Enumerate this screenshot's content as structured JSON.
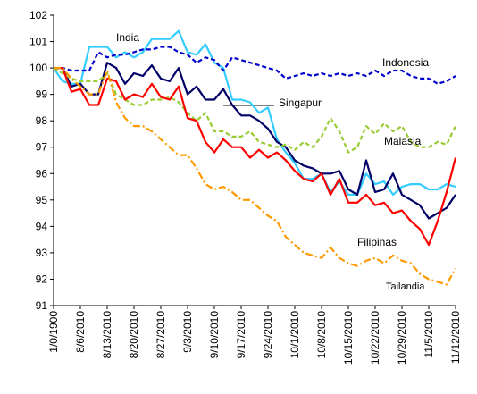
{
  "chart_data": {
    "type": "line",
    "categories": [
      "1/0/1900",
      null,
      null,
      "8/6/2010",
      null,
      null,
      "8/13/2010",
      null,
      null,
      "8/20/2010",
      null,
      null,
      "8/27/2010",
      null,
      null,
      "9/3/2010",
      null,
      null,
      "9/10/2010",
      null,
      null,
      "9/17/2010",
      null,
      null,
      "9/24/2010",
      null,
      null,
      "10/1/2010",
      null,
      null,
      "10/8/2010",
      null,
      null,
      "10/15/2010",
      null,
      null,
      "10/22/2010",
      null,
      null,
      "10/29/2010",
      null,
      null,
      "11/5/2010",
      null,
      null,
      "11/12/2010"
    ],
    "ylim": [
      91,
      102
    ],
    "yticks": [
      91,
      92,
      93,
      94,
      95,
      96,
      97,
      98,
      99,
      100,
      101,
      102
    ],
    "series": [
      {
        "name": "India",
        "color": "#33ccff",
        "style": "solid",
        "values": [
          100,
          99.5,
          99.4,
          99.4,
          100.8,
          100.8,
          100.8,
          100.4,
          100.6,
          100.4,
          100.6,
          101.1,
          101.1,
          101.1,
          101.4,
          100.6,
          100.5,
          100.9,
          100.2,
          100.0,
          98.8,
          98.8,
          98.7,
          98.3,
          98.5,
          97.3,
          96.8,
          96.4,
          95.8,
          95.8,
          96.0,
          95.3,
          95.7,
          95.2,
          95.2,
          96.0,
          95.6,
          95.7,
          95.2,
          95.5,
          95.6,
          95.6,
          95.4,
          95.4,
          95.6,
          95.5
        ]
      },
      {
        "name": "Indonesia",
        "color": "#0000cc",
        "style": "dashed",
        "values": [
          100,
          100,
          99.9,
          99.9,
          99.9,
          100.6,
          100.4,
          100.5,
          100.5,
          100.6,
          100.7,
          100.7,
          100.8,
          100.8,
          100.6,
          100.5,
          100.2,
          100.4,
          100.3,
          99.9,
          100.4,
          100.3,
          100.2,
          100.1,
          100.0,
          99.9,
          99.6,
          99.7,
          99.8,
          99.7,
          99.8,
          99.7,
          99.8,
          99.7,
          99.8,
          99.7,
          99.9,
          99.7,
          99.9,
          99.9,
          99.7,
          99.6,
          99.6,
          99.4,
          99.5,
          99.7
        ]
      },
      {
        "name": "Singapur",
        "color": "#000066",
        "style": "solid",
        "values": [
          100,
          100,
          99.3,
          99.4,
          99.0,
          99.0,
          100.2,
          100.0,
          99.4,
          99.8,
          99.7,
          100.1,
          99.6,
          99.5,
          100.0,
          99.0,
          99.3,
          98.8,
          98.8,
          99.2,
          98.6,
          98.2,
          98.2,
          98.0,
          97.7,
          97.2,
          97.0,
          96.5,
          96.3,
          96.2,
          96.0,
          96.0,
          96.1,
          95.4,
          95.2,
          96.5,
          95.3,
          95.4,
          96.0,
          95.2,
          95.0,
          94.8,
          94.3,
          94.5,
          94.7,
          95.2
        ]
      },
      {
        "name": "Malasia",
        "color": "#99cc33",
        "style": "dashed",
        "values": [
          100,
          99.8,
          99.6,
          99.5,
          99.5,
          99.5,
          99.8,
          99.0,
          98.8,
          98.6,
          98.6,
          98.8,
          98.8,
          98.9,
          98.7,
          98.3,
          98.0,
          98.3,
          97.6,
          97.6,
          97.4,
          97.4,
          97.6,
          97.2,
          97.1,
          97.0,
          97.1,
          96.9,
          97.2,
          97.0,
          97.4,
          98.1,
          97.6,
          96.8,
          97.0,
          97.8,
          97.5,
          97.9,
          97.6,
          97.8,
          97.2,
          97.0,
          97.0,
          97.2,
          97.1,
          97.8
        ]
      },
      {
        "name": "Filipinas",
        "color": "#ff0000",
        "style": "solid",
        "values": [
          100,
          100,
          99.1,
          99.2,
          98.6,
          98.6,
          99.6,
          99.5,
          98.8,
          99.0,
          98.9,
          99.4,
          98.9,
          98.8,
          99.3,
          98.1,
          98.0,
          97.2,
          96.8,
          97.3,
          97.0,
          97.0,
          96.6,
          96.9,
          96.6,
          96.8,
          96.5,
          96.1,
          95.8,
          95.7,
          96.0,
          95.2,
          95.8,
          94.9,
          94.9,
          95.2,
          94.8,
          94.9,
          94.5,
          94.6,
          94.2,
          93.9,
          93.3,
          94.2,
          95.3,
          96.6
        ]
      },
      {
        "name": "Tailandia",
        "color": "#ff9900",
        "style": "dashdot",
        "values": [
          100,
          100,
          99.6,
          99.3,
          99.0,
          99.0,
          99.9,
          98.7,
          98.1,
          97.8,
          97.8,
          97.6,
          97.3,
          97.0,
          96.7,
          96.7,
          96.2,
          95.6,
          95.4,
          95.5,
          95.3,
          95.0,
          95.0,
          94.7,
          94.4,
          94.2,
          93.6,
          93.3,
          93.0,
          92.9,
          92.8,
          93.2,
          92.8,
          92.6,
          92.5,
          92.7,
          92.8,
          92.6,
          92.9,
          92.7,
          92.6,
          92.2,
          92.0,
          91.9,
          91.8,
          92.4
        ]
      }
    ]
  }
}
